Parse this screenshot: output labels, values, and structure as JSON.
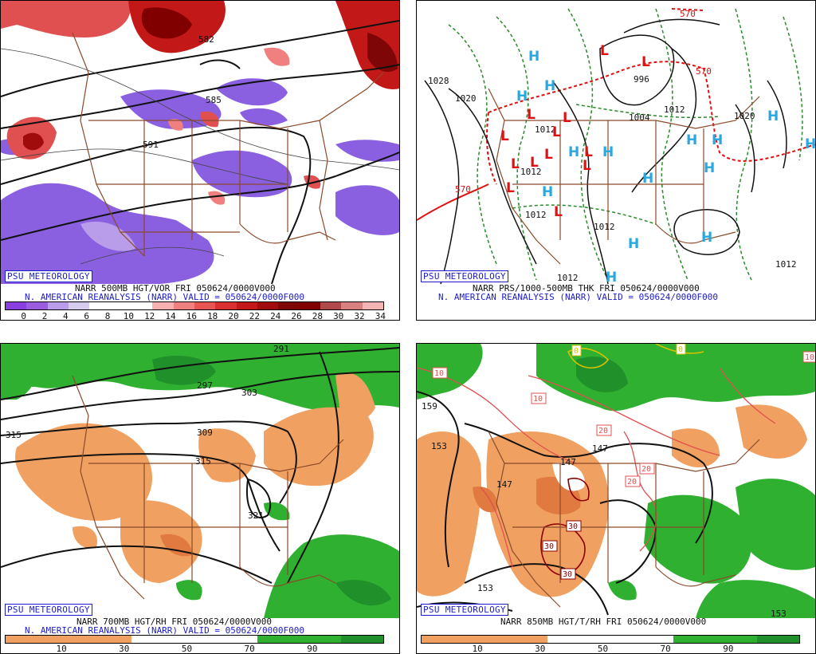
{
  "panels": [
    {
      "id": "vor",
      "psu_label": "PSU METEOROLOGY",
      "title_line1": "NARR 500MB HGT/VOR FRI 050624/0000V000",
      "title_line2": "N. AMERICAN REANALYSIS (NARR) VALID = 050624/0000F000",
      "scale_labels": [
        "0",
        "2",
        "4",
        "6",
        "8",
        "10",
        "12",
        "14",
        "16",
        "18",
        "20",
        "22",
        "24",
        "26",
        "28",
        "30",
        "32",
        "34"
      ],
      "scale_colors": [
        "#8a3fe0",
        "#9a5de0",
        "#b99cea",
        "#d6ccf0",
        "#ffffff",
        "#ffffff",
        "#ffffff",
        "#f8b0b0",
        "#f07f7f",
        "#e65454",
        "#d83030",
        "#c21818",
        "#a00c0c",
        "#7e0606",
        "#800000",
        "#b04a4a",
        "#d88080",
        "#f4b4b4"
      ],
      "contour_labels": [
        "582",
        "585",
        "591"
      ]
    },
    {
      "id": "prs",
      "psu_label": "PSU METEOROLOGY",
      "title_line1": "NARR PRS/1000-500MB THK FRI 050624/0000V000",
      "title_line2": "N. AMERICAN REANALYSIS (NARR) VALID = 050624/0000F000",
      "contour_labels": [
        "1028",
        "1020",
        "1012",
        "1012",
        "1012",
        "1012",
        "1012",
        "1020",
        "1012",
        "996",
        "1004",
        "1012",
        "570",
        "570",
        "570"
      ],
      "high_label": "H",
      "low_label": "L"
    },
    {
      "id": "rh700",
      "psu_label": "PSU METEOROLOGY",
      "title_line1": "NARR 700MB HGT/RH FRI 050624/0000V000",
      "title_line2": "N. AMERICAN REANALYSIS (NARR) VALID = 050624/0000F000",
      "scale_labels": [
        "10",
        "30",
        "50",
        "70",
        "90"
      ],
      "contour_labels": [
        "291",
        "297",
        "303",
        "309",
        "315",
        "315",
        "321"
      ]
    },
    {
      "id": "t850",
      "psu_label": "PSU METEOROLOGY",
      "title_line1": "NARR 850MB HGT/T/RH FRI 050624/0000V000",
      "scale_labels": [
        "10",
        "30",
        "50",
        "70",
        "90"
      ],
      "contour_labels": [
        "159",
        "153",
        "147",
        "147",
        "147",
        "153",
        "153"
      ],
      "temp_labels": [
        "10",
        "10",
        "20",
        "20",
        "20",
        "30",
        "30",
        "30",
        "0",
        "0",
        "10"
      ]
    }
  ],
  "colors": {
    "rh_dry": "#f0a060",
    "rh_moist": "#30b030",
    "rh_moist_dark": "#20902a",
    "vor_neg": "#8a60e0",
    "vor_pos": "#e05050",
    "high_blue": "#29a7e0",
    "low_red": "#e01010",
    "border_brown": "#8b4a2a"
  }
}
